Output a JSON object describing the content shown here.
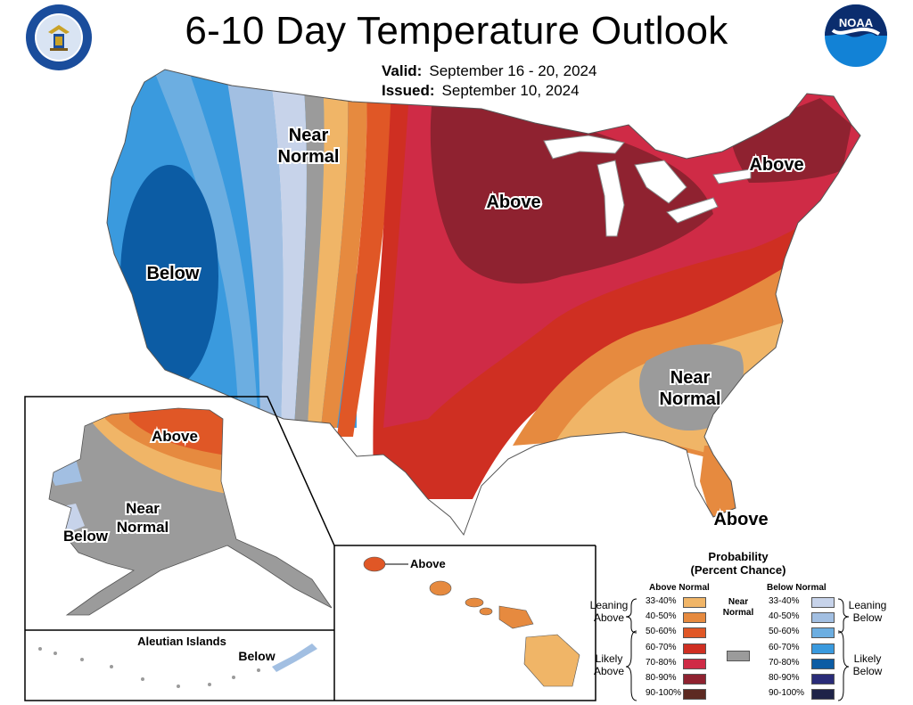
{
  "header": {
    "title": "6-10 Day Temperature Outlook",
    "valid_label": "Valid:",
    "valid_dates": "September 16 - 20, 2024",
    "issued_label": "Issued:",
    "issued_date": "September 10, 2024"
  },
  "logos": {
    "left": "department-of-commerce-seal",
    "right": "noaa-logo"
  },
  "map": {
    "labels": {
      "near_normal_west_1": "Near",
      "near_normal_west_2": "Normal",
      "above_midwest": "Above",
      "above_northeast": "Above",
      "below_west": "Below",
      "near_normal_southeast_1": "Near",
      "near_normal_southeast_2": "Normal",
      "above_florida": "Above"
    },
    "alaska": {
      "above": "Above",
      "near_normal_1": "Near",
      "near_normal_2": "Normal",
      "below": "Below"
    },
    "aleutian": {
      "title": "Aleutian Islands",
      "below": "Below"
    },
    "hawaii": {
      "above": "Above"
    }
  },
  "legend": {
    "title_line1": "Probability",
    "title_line2": "(Percent Chance)",
    "above_header": "Above Normal",
    "below_header": "Below Normal",
    "near_normal_1": "Near",
    "near_normal_2": "Normal",
    "above_bins": [
      {
        "label": "33-40%",
        "color": "#f0b567"
      },
      {
        "label": "40-50%",
        "color": "#e68a3f"
      },
      {
        "label": "50-60%",
        "color": "#e05726"
      },
      {
        "label": "60-70%",
        "color": "#cf2f22"
      },
      {
        "label": "70-80%",
        "color": "#cf2b46"
      },
      {
        "label": "80-90%",
        "color": "#8f2230"
      },
      {
        "label": "90-100%",
        "color": "#5d2a22"
      }
    ],
    "below_bins": [
      {
        "label": "33-40%",
        "color": "#c7d3ea"
      },
      {
        "label": "40-50%",
        "color": "#a2bfe2"
      },
      {
        "label": "50-60%",
        "color": "#6caee1"
      },
      {
        "label": "60-70%",
        "color": "#3a9ade"
      },
      {
        "label": "70-80%",
        "color": "#0c5ca4"
      },
      {
        "label": "80-90%",
        "color": "#2a2c78"
      },
      {
        "label": "90-100%",
        "color": "#1e2348"
      }
    ],
    "near_color": "#9b9b9b",
    "leaning_above_1": "Leaning",
    "leaning_above_2": "Above",
    "likely_above_1": "Likely",
    "likely_above_2": "Above",
    "leaning_below_1": "Leaning",
    "leaning_below_2": "Below",
    "likely_below_1": "Likely",
    "likely_below_2": "Below"
  }
}
